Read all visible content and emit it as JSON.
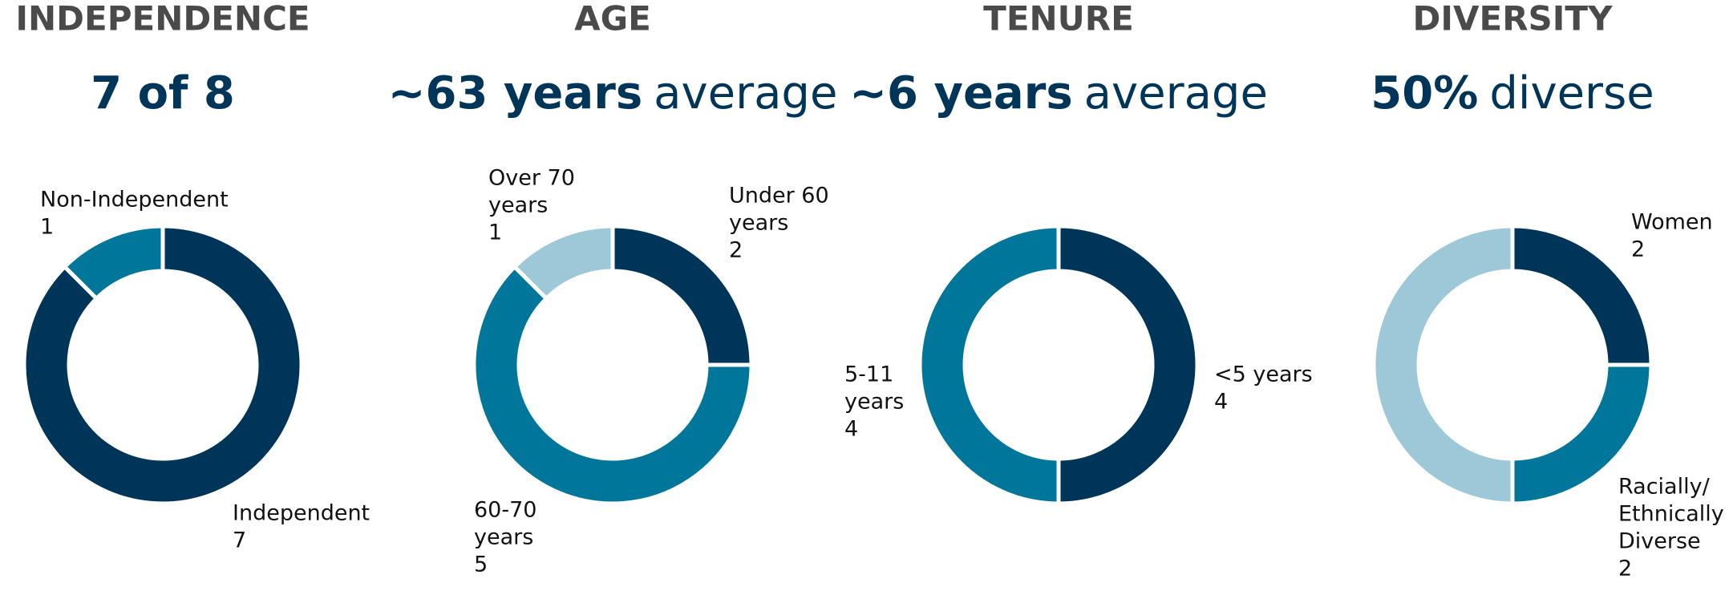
{
  "chart_data": [
    {
      "type": "pie",
      "title": "INDEPENDENCE",
      "subtitle_bold": "7 of 8",
      "subtitle_regular": null,
      "labels": [
        [
          "Independent"
        ],
        [
          "Non-Independent"
        ]
      ],
      "values": [
        7,
        1
      ],
      "colors": [
        "#00355a",
        "#00769a"
      ]
    },
    {
      "type": "pie",
      "title": "AGE",
      "subtitle_bold": "~63 years",
      "subtitle_regular": "average",
      "labels": [
        [
          "Under 60",
          "years"
        ],
        [
          "60-70",
          "years"
        ],
        [
          "Over 70",
          "years"
        ]
      ],
      "values": [
        2,
        5,
        1
      ],
      "colors": [
        "#00355a",
        "#00769a",
        "#9cc8d8"
      ]
    },
    {
      "type": "pie",
      "title": "TENURE",
      "subtitle_bold": "~6 years",
      "subtitle_regular": "average",
      "labels": [
        [
          "<5 years"
        ],
        [
          "5-11",
          "years"
        ]
      ],
      "values": [
        4,
        4
      ],
      "colors": [
        "#00355a",
        "#00769a"
      ]
    },
    {
      "type": "pie",
      "title": "DIVERSITY",
      "subtitle_bold": "50%",
      "subtitle_regular": "diverse",
      "labels": [
        [
          "Women"
        ],
        [
          "Racially/",
          "Ethnically",
          "Diverse"
        ],
        null
      ],
      "values": [
        2,
        2,
        4
      ],
      "colors": [
        "#00355a",
        "#00769a",
        "#9cc8d8"
      ]
    }
  ]
}
